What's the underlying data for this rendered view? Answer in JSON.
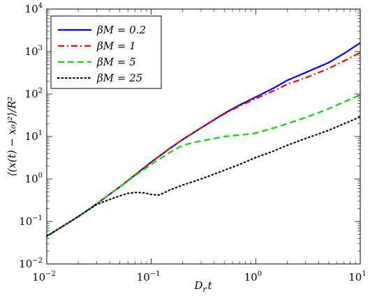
{
  "chart_data": {
    "type": "line",
    "xscale": "log",
    "yscale": "log",
    "xlim": [
      0.01,
      10
    ],
    "ylim": [
      0.01,
      10000
    ],
    "xlabel": "D_r t",
    "ylabel": "⟨(x(t) − x₀)²⟩/R²",
    "x_ticks": [
      {
        "base": "10",
        "exp": "−2",
        "value": 0.01
      },
      {
        "base": "10",
        "exp": "−1",
        "value": 0.1
      },
      {
        "base": "10",
        "exp": "0",
        "value": 1
      },
      {
        "base": "10",
        "exp": "1",
        "value": 10
      }
    ],
    "y_ticks": [
      {
        "base": "10",
        "exp": "−2",
        "value": 0.01
      },
      {
        "base": "10",
        "exp": "−1",
        "value": 0.1
      },
      {
        "base": "10",
        "exp": "0",
        "value": 1
      },
      {
        "base": "10",
        "exp": "1",
        "value": 10
      },
      {
        "base": "10",
        "exp": "2",
        "value": 100
      },
      {
        "base": "10",
        "exp": "3",
        "value": 1000
      },
      {
        "base": "10",
        "exp": "4",
        "value": 10000
      }
    ],
    "legend_position": "top-left",
    "grid": false,
    "series": [
      {
        "name": "βM = 0.2",
        "color": "#0000ff",
        "dash": "solid",
        "points": [
          [
            0.01,
            0.045
          ],
          [
            0.02,
            0.13
          ],
          [
            0.03,
            0.26
          ],
          [
            0.05,
            0.65
          ],
          [
            0.07,
            1.25
          ],
          [
            0.1,
            2.5
          ],
          [
            0.15,
            5.2
          ],
          [
            0.2,
            8.5
          ],
          [
            0.3,
            16
          ],
          [
            0.5,
            35
          ],
          [
            0.7,
            55
          ],
          [
            1,
            85
          ],
          [
            1.5,
            140
          ],
          [
            2,
            210
          ],
          [
            3,
            320
          ],
          [
            5,
            550
          ],
          [
            7,
            900
          ],
          [
            10,
            1600
          ]
        ]
      },
      {
        "name": "βM = 1",
        "color": "#ff0000",
        "dash": "dashdot",
        "points": [
          [
            0.01,
            0.045
          ],
          [
            0.02,
            0.13
          ],
          [
            0.03,
            0.26
          ],
          [
            0.05,
            0.65
          ],
          [
            0.07,
            1.25
          ],
          [
            0.1,
            2.5
          ],
          [
            0.15,
            5.2
          ],
          [
            0.2,
            8.5
          ],
          [
            0.3,
            16
          ],
          [
            0.5,
            34
          ],
          [
            0.7,
            52
          ],
          [
            1,
            78
          ],
          [
            1.5,
            120
          ],
          [
            2,
            170
          ],
          [
            3,
            240
          ],
          [
            5,
            400
          ],
          [
            7,
            600
          ],
          [
            10,
            950
          ]
        ]
      },
      {
        "name": "βM = 5",
        "color": "#00dd00",
        "dash": "dash",
        "points": [
          [
            0.01,
            0.045
          ],
          [
            0.02,
            0.13
          ],
          [
            0.03,
            0.26
          ],
          [
            0.05,
            0.65
          ],
          [
            0.07,
            1.2
          ],
          [
            0.1,
            2.2
          ],
          [
            0.15,
            4.2
          ],
          [
            0.2,
            6.2
          ],
          [
            0.25,
            7.2
          ],
          [
            0.3,
            7.8
          ],
          [
            0.4,
            9
          ],
          [
            0.5,
            10
          ],
          [
            0.7,
            10.8
          ],
          [
            1,
            12
          ],
          [
            1.5,
            16
          ],
          [
            2,
            20
          ],
          [
            3,
            28
          ],
          [
            5,
            45
          ],
          [
            7,
            65
          ],
          [
            10,
            95
          ]
        ]
      },
      {
        "name": "βM = 25",
        "color": "#000000",
        "dash": "dot",
        "points": [
          [
            0.01,
            0.045
          ],
          [
            0.02,
            0.13
          ],
          [
            0.03,
            0.25
          ],
          [
            0.04,
            0.33
          ],
          [
            0.05,
            0.4
          ],
          [
            0.06,
            0.46
          ],
          [
            0.07,
            0.48
          ],
          [
            0.08,
            0.48
          ],
          [
            0.09,
            0.46
          ],
          [
            0.1,
            0.43
          ],
          [
            0.12,
            0.42
          ],
          [
            0.15,
            0.55
          ],
          [
            0.2,
            0.72
          ],
          [
            0.3,
            1.0
          ],
          [
            0.5,
            1.6
          ],
          [
            0.7,
            2.2
          ],
          [
            1,
            3.2
          ],
          [
            1.5,
            4.6
          ],
          [
            2,
            6.2
          ],
          [
            3,
            9
          ],
          [
            5,
            14
          ],
          [
            7,
            20
          ],
          [
            10,
            29
          ]
        ]
      }
    ]
  }
}
